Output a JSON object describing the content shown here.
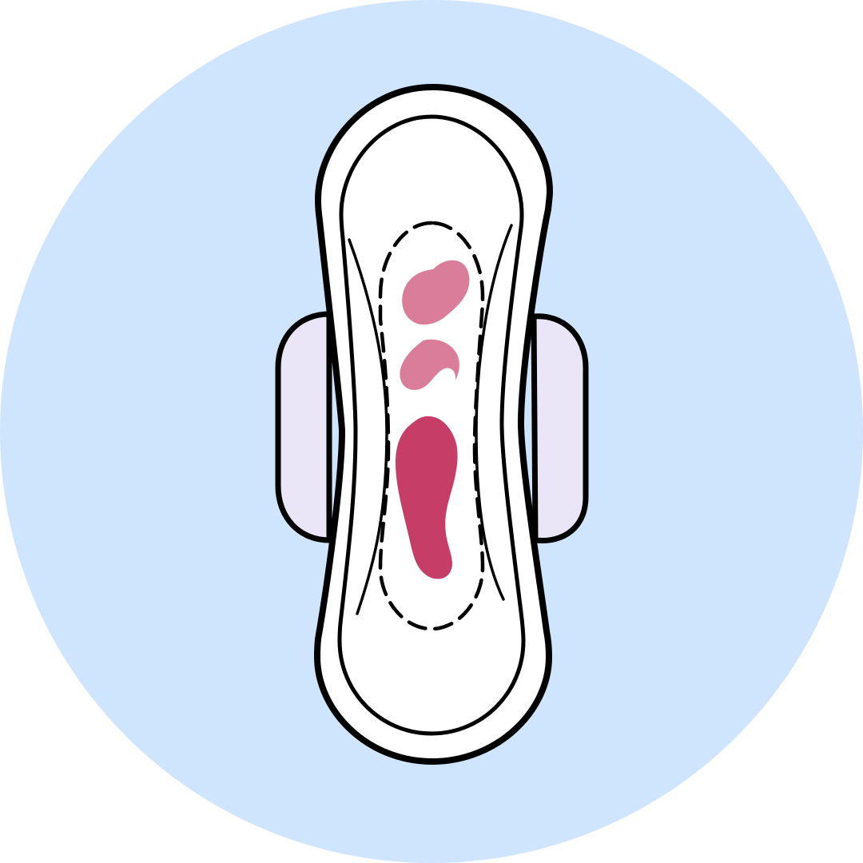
{
  "illustration": {
    "subject": "sanitary-pad",
    "colors": {
      "background_circle": "#cfe4fd",
      "outline": "#000000",
      "pad_fill": "#ffffff",
      "wing_fill": "#ebe5f8",
      "stain_light": "#d97d9a",
      "stain_dark": "#c63d68"
    }
  }
}
